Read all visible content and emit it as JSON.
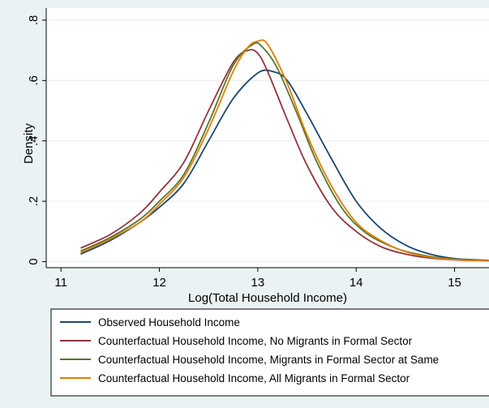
{
  "chart_data": {
    "type": "line",
    "xlabel": "Log(Total Household Income)",
    "ylabel": "Density",
    "xlim": [
      10.85,
      15.35
    ],
    "ylim": [
      -0.02,
      0.84
    ],
    "x_ticks": [
      11,
      12,
      13,
      14,
      15
    ],
    "x_tick_labels": [
      "11",
      "12",
      "13",
      "14",
      "15"
    ],
    "y_ticks": [
      0,
      0.2,
      0.4,
      0.6,
      0.8
    ],
    "y_tick_labels": [
      "0",
      ".2",
      ".4",
      ".6",
      ".8"
    ],
    "grid": "horizontal",
    "legend_position": "bottom",
    "series": [
      {
        "name": "Observed Household Income",
        "color": "#1a476f",
        "points": [
          [
            11.2,
            0.025
          ],
          [
            11.5,
            0.07
          ],
          [
            11.8,
            0.13
          ],
          [
            12.0,
            0.18
          ],
          [
            12.25,
            0.26
          ],
          [
            12.5,
            0.4
          ],
          [
            12.75,
            0.54
          ],
          [
            13.0,
            0.625
          ],
          [
            13.15,
            0.63
          ],
          [
            13.3,
            0.6
          ],
          [
            13.5,
            0.49
          ],
          [
            13.75,
            0.34
          ],
          [
            14.0,
            0.2
          ],
          [
            14.25,
            0.11
          ],
          [
            14.5,
            0.055
          ],
          [
            14.75,
            0.025
          ],
          [
            15.0,
            0.01
          ],
          [
            15.35,
            0.004
          ]
        ]
      },
      {
        "name": "Counterfactual Household Income, No Migrants in Formal Sector",
        "color": "#90353b",
        "points": [
          [
            11.2,
            0.045
          ],
          [
            11.5,
            0.09
          ],
          [
            11.8,
            0.16
          ],
          [
            12.0,
            0.23
          ],
          [
            12.25,
            0.33
          ],
          [
            12.5,
            0.5
          ],
          [
            12.75,
            0.66
          ],
          [
            12.9,
            0.7
          ],
          [
            13.0,
            0.69
          ],
          [
            13.1,
            0.63
          ],
          [
            13.3,
            0.47
          ],
          [
            13.5,
            0.32
          ],
          [
            13.75,
            0.18
          ],
          [
            14.0,
            0.1
          ],
          [
            14.25,
            0.05
          ],
          [
            14.5,
            0.025
          ],
          [
            14.75,
            0.012
          ],
          [
            15.0,
            0.006
          ],
          [
            15.35,
            0.003
          ]
        ]
      },
      {
        "name": "Counterfactual Household Income, Migrants in Formal Sector at Same",
        "color": "#55752f",
        "points": [
          [
            11.2,
            0.035
          ],
          [
            11.5,
            0.08
          ],
          [
            11.8,
            0.14
          ],
          [
            12.0,
            0.2
          ],
          [
            12.25,
            0.29
          ],
          [
            12.5,
            0.46
          ],
          [
            12.75,
            0.65
          ],
          [
            12.95,
            0.72
          ],
          [
            13.05,
            0.71
          ],
          [
            13.2,
            0.64
          ],
          [
            13.4,
            0.49
          ],
          [
            13.6,
            0.33
          ],
          [
            13.85,
            0.18
          ],
          [
            14.1,
            0.095
          ],
          [
            14.4,
            0.045
          ],
          [
            14.7,
            0.02
          ],
          [
            15.0,
            0.008
          ],
          [
            15.35,
            0.003
          ]
        ]
      },
      {
        "name": "Counterfactual Household Income, All Migrants in Formal Sector",
        "color": "#e37e00",
        "points": [
          [
            11.2,
            0.03
          ],
          [
            11.5,
            0.075
          ],
          [
            11.8,
            0.13
          ],
          [
            12.0,
            0.19
          ],
          [
            12.25,
            0.28
          ],
          [
            12.5,
            0.44
          ],
          [
            12.75,
            0.63
          ],
          [
            12.9,
            0.71
          ],
          [
            13.0,
            0.73
          ],
          [
            13.1,
            0.72
          ],
          [
            13.3,
            0.59
          ],
          [
            13.5,
            0.42
          ],
          [
            13.75,
            0.25
          ],
          [
            14.0,
            0.13
          ],
          [
            14.25,
            0.07
          ],
          [
            14.5,
            0.033
          ],
          [
            14.75,
            0.015
          ],
          [
            15.0,
            0.007
          ],
          [
            15.35,
            0.003
          ]
        ]
      }
    ]
  }
}
